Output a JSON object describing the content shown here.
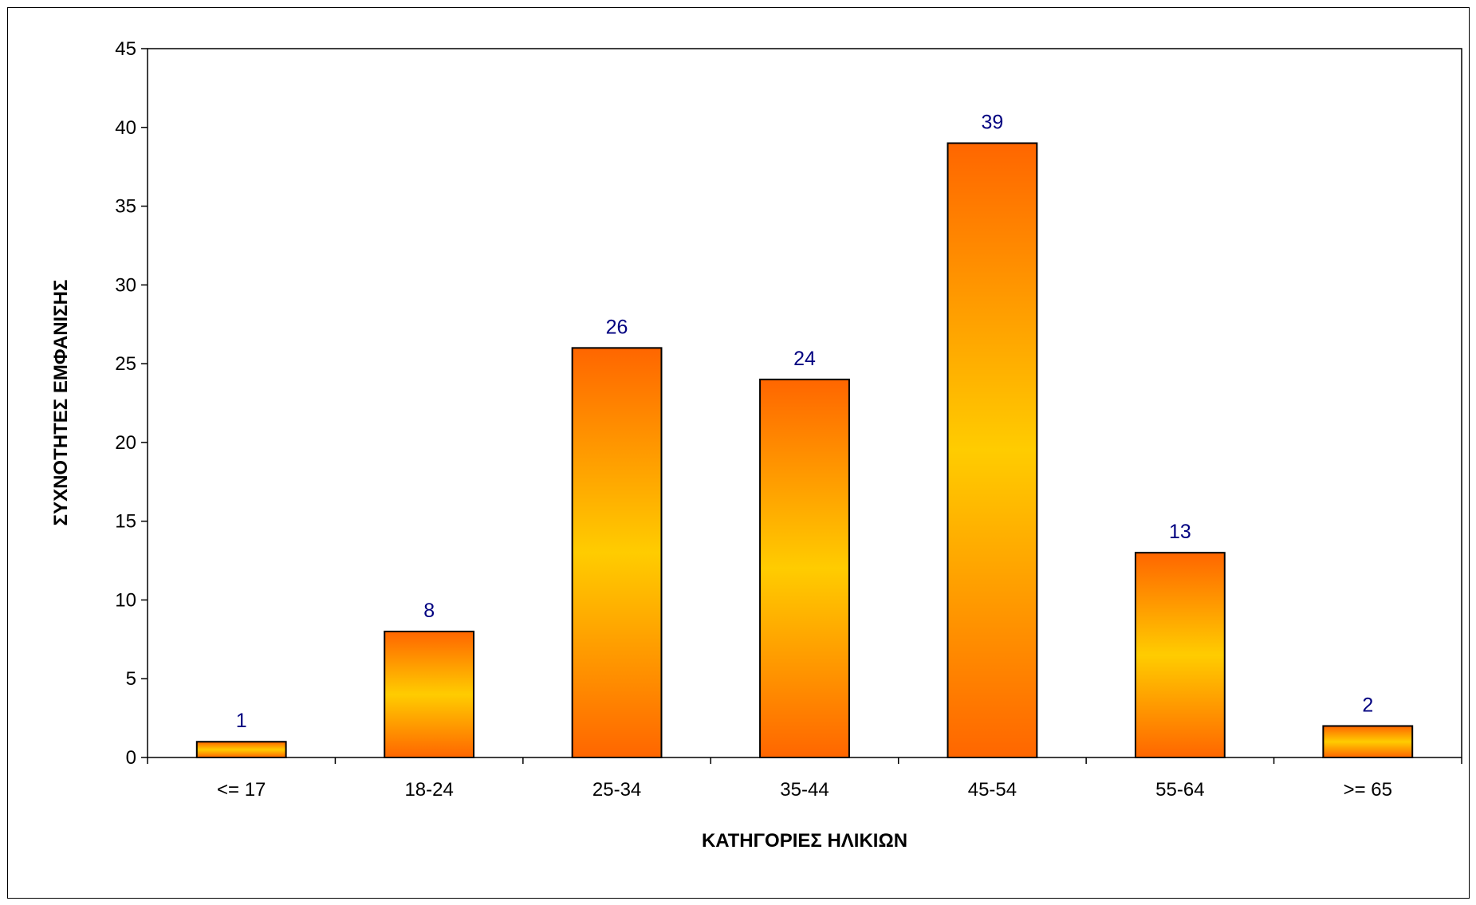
{
  "chart_data": {
    "type": "bar",
    "title": "",
    "xlabel": "ΚΑΤΗΓΟΡΙΕΣ ΗΛΙΚΙΩΝ",
    "ylabel": "ΣΥΧΝΟΤΗΤΕΣ ΕΜΦΑΝΙΣΗΣ",
    "categories": [
      "<= 17",
      "18-24",
      "25-34",
      "35-44",
      "45-54",
      "55-64",
      ">= 65"
    ],
    "values": [
      1,
      8,
      26,
      24,
      39,
      13,
      2
    ],
    "ylim": [
      0,
      45
    ],
    "yticks": [
      0,
      5,
      10,
      15,
      20,
      25,
      30,
      35,
      40,
      45
    ],
    "grid": false,
    "legend": "none",
    "data_labels": true,
    "colors": {
      "bar_edge": "#FF6600",
      "bar_center": "#FFCC00",
      "bar_outline": "#000000",
      "data_label": "#000080",
      "axis": "#000000"
    }
  }
}
